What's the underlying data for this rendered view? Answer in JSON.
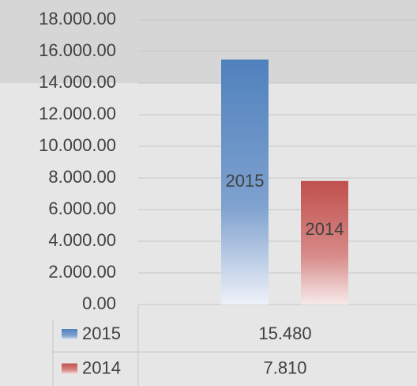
{
  "chart_data": {
    "type": "bar",
    "series": [
      {
        "name": "2015",
        "color": "#4f81bd",
        "values": [
          15480
        ],
        "value_labels": [
          "15.480"
        ]
      },
      {
        "name": "2014",
        "color": "#c0504d",
        "values": [
          7810
        ],
        "value_labels": [
          "7.810"
        ]
      }
    ],
    "ylim": [
      0,
      18000
    ],
    "yticks": [
      {
        "value": 0,
        "label": "0.00"
      },
      {
        "value": 2000,
        "label": "2.000.00"
      },
      {
        "value": 4000,
        "label": "4.000.00"
      },
      {
        "value": 6000,
        "label": "6.000.00"
      },
      {
        "value": 8000,
        "label": "8.000.00"
      },
      {
        "value": 10000,
        "label": "10.000.00"
      },
      {
        "value": 12000,
        "label": "12.000.00"
      },
      {
        "value": 14000,
        "label": "14.000.00"
      },
      {
        "value": 16000,
        "label": "16.000.00"
      },
      {
        "value": 18000,
        "label": "18.000.00"
      }
    ],
    "grid": true
  }
}
